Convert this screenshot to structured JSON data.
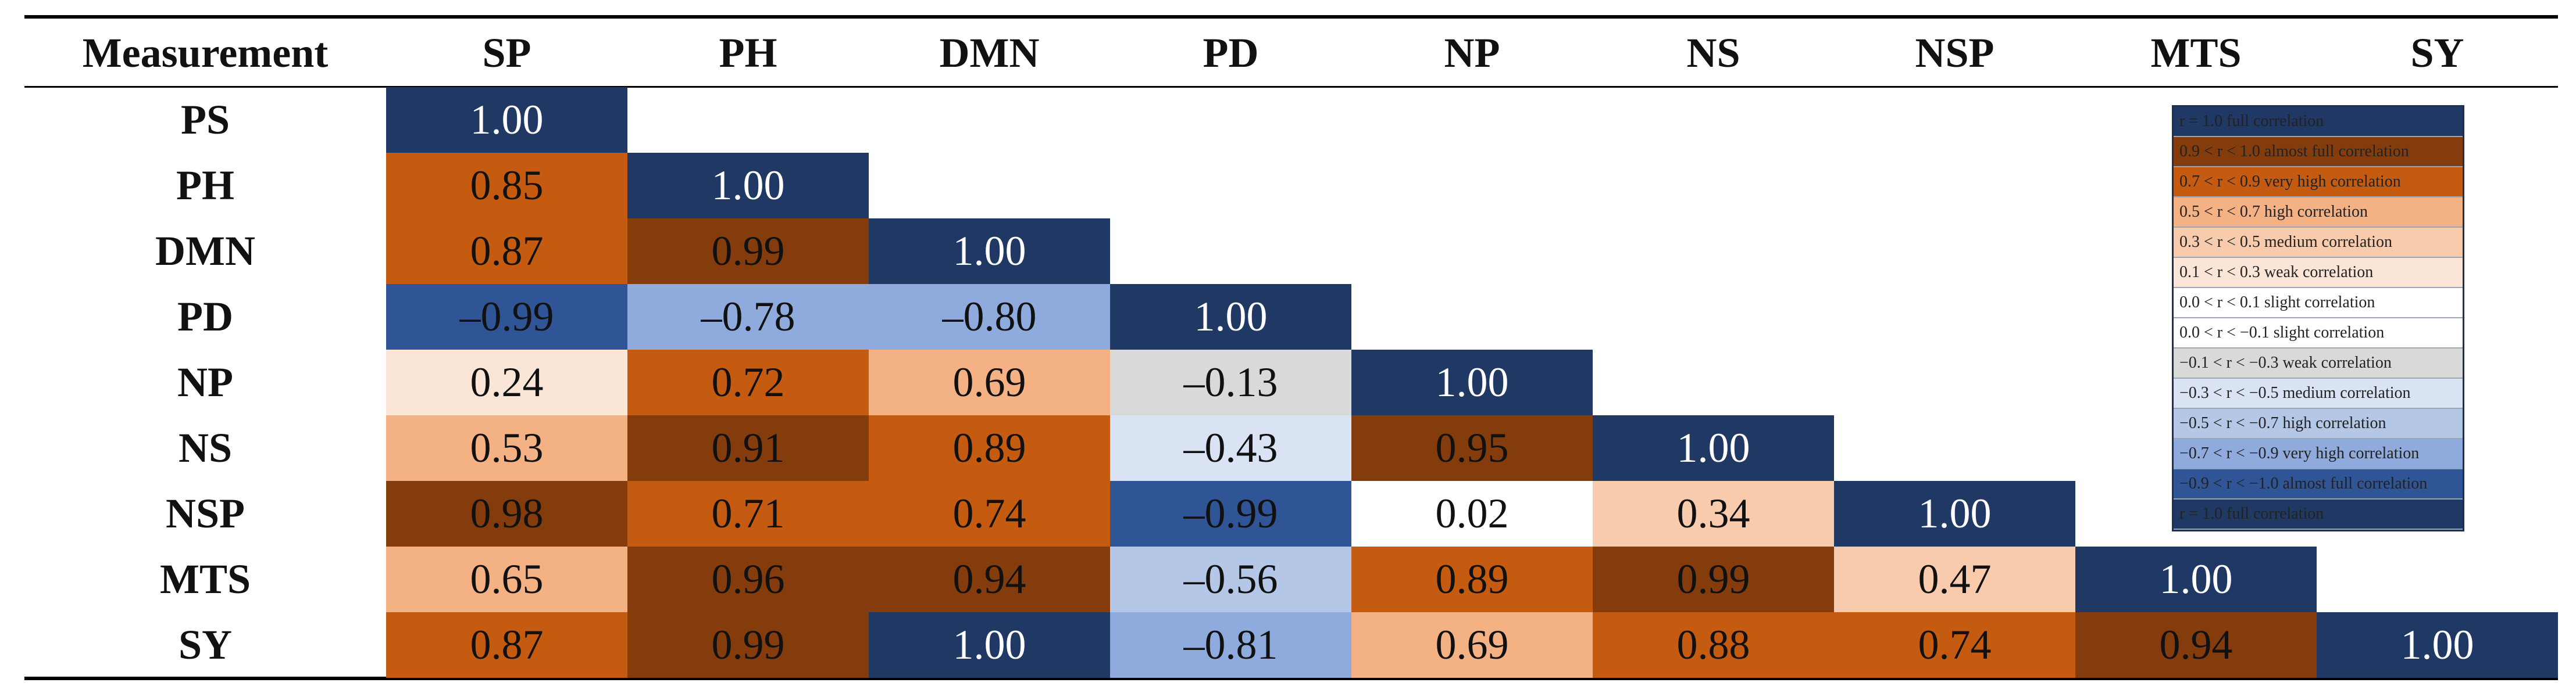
{
  "table": {
    "header": [
      "Measurement",
      "SP",
      "PH",
      "DMN",
      "PD",
      "NP",
      "NS",
      "NSP",
      "MTS",
      "SY"
    ],
    "rows": [
      {
        "label": "PS",
        "cells": [
          {
            "text": "1.00",
            "color": "#203864"
          }
        ]
      },
      {
        "label": "PH",
        "cells": [
          {
            "text": "0.85",
            "color": "#c55a11"
          },
          {
            "text": "1.00",
            "color": "#203864"
          }
        ]
      },
      {
        "label": "DMN",
        "cells": [
          {
            "text": "0.87",
            "color": "#c55a11"
          },
          {
            "text": "0.99",
            "color": "#843c0c"
          },
          {
            "text": "1.00",
            "color": "#203864"
          }
        ]
      },
      {
        "label": "PD",
        "cells": [
          {
            "text": "–0.99",
            "color": "#2f5597"
          },
          {
            "text": "–0.78",
            "color": "#8faadc"
          },
          {
            "text": "–0.80",
            "color": "#8faadc"
          },
          {
            "text": "1.00",
            "color": "#203864"
          }
        ]
      },
      {
        "label": "NP",
        "cells": [
          {
            "text": "0.24",
            "color": "#fbe5d6"
          },
          {
            "text": "0.72",
            "color": "#c55a11"
          },
          {
            "text": "0.69",
            "color": "#f4b183"
          },
          {
            "text": "–0.13",
            "color": "#d9d9d9"
          },
          {
            "text": "1.00",
            "color": "#203864"
          }
        ]
      },
      {
        "label": "NS",
        "cells": [
          {
            "text": "0.53",
            "color": "#f4b183"
          },
          {
            "text": "0.91",
            "color": "#843c0c"
          },
          {
            "text": "0.89",
            "color": "#c55a11"
          },
          {
            "text": "–0.43",
            "color": "#dae3f3"
          },
          {
            "text": "0.95",
            "color": "#843c0c"
          },
          {
            "text": "1.00",
            "color": "#203864"
          }
        ]
      },
      {
        "label": "NSP",
        "cells": [
          {
            "text": "0.98",
            "color": "#843c0c"
          },
          {
            "text": "0.71",
            "color": "#c55a11"
          },
          {
            "text": "0.74",
            "color": "#c55a11"
          },
          {
            "text": "–0.99",
            "color": "#2f5597"
          },
          {
            "text": "0.02",
            "color": "#ffffff"
          },
          {
            "text": "0.34",
            "color": "#f8cbad"
          },
          {
            "text": "1.00",
            "color": "#203864"
          }
        ]
      },
      {
        "label": "MTS",
        "cells": [
          {
            "text": "0.65",
            "color": "#f4b183"
          },
          {
            "text": "0.96",
            "color": "#843c0c"
          },
          {
            "text": "0.94",
            "color": "#843c0c"
          },
          {
            "text": "–0.56",
            "color": "#b4c7e7"
          },
          {
            "text": "0.89",
            "color": "#c55a11"
          },
          {
            "text": "0.99",
            "color": "#843c0c"
          },
          {
            "text": "0.47",
            "color": "#f8cbad"
          },
          {
            "text": "1.00",
            "color": "#203864"
          }
        ]
      },
      {
        "label": "SY",
        "cells": [
          {
            "text": "0.87",
            "color": "#c55a11"
          },
          {
            "text": "0.99",
            "color": "#843c0c"
          },
          {
            "text": "1.00",
            "color": "#203864"
          },
          {
            "text": "–0.81",
            "color": "#8faadc"
          },
          {
            "text": "0.69",
            "color": "#f4b183"
          },
          {
            "text": "0.88",
            "color": "#c55a11"
          },
          {
            "text": "0.74",
            "color": "#c55a11"
          },
          {
            "text": "0.94",
            "color": "#843c0c"
          },
          {
            "text": "1.00",
            "color": "#203864"
          }
        ]
      }
    ]
  },
  "legend": [
    {
      "text": "r = 1.0 full correlation",
      "color": "#203864"
    },
    {
      "text": "0.9 < r < 1.0 almost full correlation",
      "color": "#843c0c"
    },
    {
      "text": "0.7 < r < 0.9 very high correlation",
      "color": "#c55a11"
    },
    {
      "text": "0.5 < r < 0.7 high correlation",
      "color": "#f4b183"
    },
    {
      "text": "0.3 < r < 0.5 medium correlation",
      "color": "#f8cbad"
    },
    {
      "text": "0.1 < r < 0.3 weak correlation",
      "color": "#fbe5d6"
    },
    {
      "text": "0.0 < r < 0.1 slight correlation",
      "color": "#ffffff"
    },
    {
      "text": "0.0 < r < −0.1 slight correlation",
      "color": "#ffffff"
    },
    {
      "text": "−0.1 < r < −0.3 weak correlation",
      "color": "#d9d9d9"
    },
    {
      "text": "−0.3 < r < −0.5 medium correlation",
      "color": "#dae3f3"
    },
    {
      "text": "−0.5 < r < −0.7 high correlation",
      "color": "#b4c7e7"
    },
    {
      "text": "−0.7 < r < −0.9 very high correlation",
      "color": "#8faadc"
    },
    {
      "text": "−0.9 < r < −1.0 almost full correlation",
      "color": "#2f5597"
    },
    {
      "text": "r = 1.0 full correlation",
      "color": "#203864"
    }
  ]
}
